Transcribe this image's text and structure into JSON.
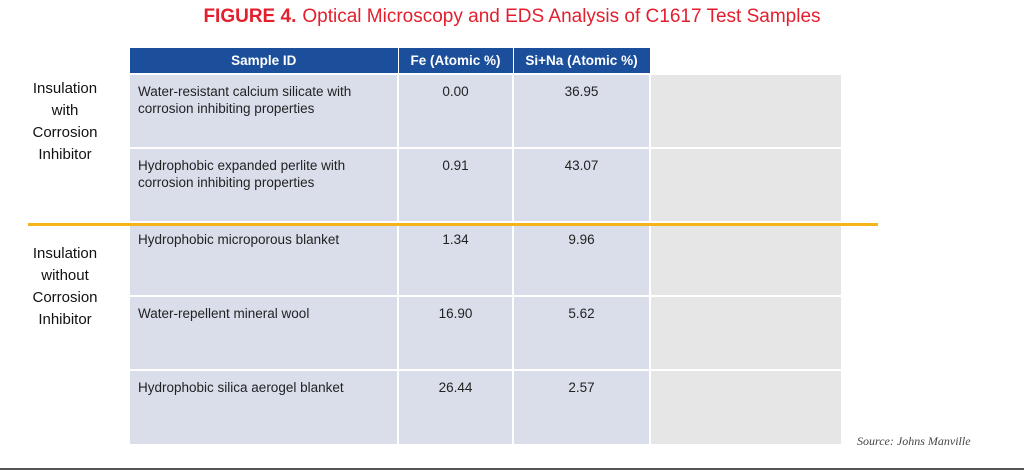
{
  "figure": {
    "label": "FIGURE 4.",
    "title": "Optical Microscopy and EDS Analysis of C1617 Test Samples"
  },
  "groups": [
    {
      "label_lines": [
        "Insulation",
        "with",
        "Corrosion",
        "Inhibitor"
      ]
    },
    {
      "label_lines": [
        "Insulation",
        "without",
        "Corrosion",
        "Inhibitor"
      ]
    }
  ],
  "table": {
    "headers": [
      "Sample ID",
      "Fe (Atomic %)",
      "Si+Na (Atomic %)"
    ],
    "rows": [
      {
        "sample": "Water-resistant calcium silicate with corrosion inhibiting properties",
        "fe": "0.00",
        "sina": "36.95"
      },
      {
        "sample": "Hydrophobic expanded perlite with corrosion inhibiting properties",
        "fe": "0.91",
        "sina": "43.07"
      },
      {
        "sample": "Hydrophobic microporous blanket",
        "fe": "1.34",
        "sina": "9.96"
      },
      {
        "sample": "Water-repellent mineral wool",
        "fe": "16.90",
        "sina": "5.62"
      },
      {
        "sample": "Hydrophobic silica aerogel blanket",
        "fe": "26.44",
        "sina": "2.57"
      }
    ]
  },
  "image_colors": [
    {
      "bg": "#9a9890",
      "disc": "#c8c4b4",
      "detail": "#c8c09c"
    },
    {
      "bg": "#6f6f70",
      "disc": "#b8b8ba",
      "detail": "#7c7e80"
    },
    {
      "bg": "#2a2620",
      "disc": "#5a4428",
      "detail": "#4a3e30"
    },
    {
      "bg": "#3a3028",
      "disc": "#6a3818",
      "detail": "#8a4a22"
    },
    {
      "bg": "#3a2e24",
      "disc": "#5a4230",
      "detail": "#a24e22"
    }
  ],
  "source": "Source: Johns Manville",
  "colors": {
    "title_red": "#e31e2d",
    "header_blue": "#1b4f9c",
    "row_fill": "#d9deea",
    "divider_gold": "#f4b41a"
  }
}
